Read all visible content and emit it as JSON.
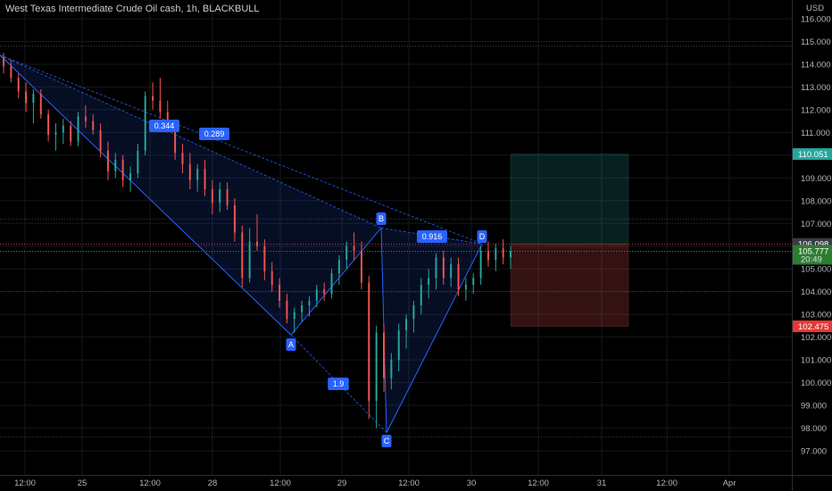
{
  "header": {
    "title": "West Texas Intermediate Crude Oil cash, 1h, BLACKBULL"
  },
  "chart_data": {
    "type": "candlestick",
    "currency": "USD",
    "ylim": [
      96.3,
      116.4
    ],
    "y_ticks": [
      97,
      98,
      99,
      100,
      101,
      102,
      103,
      104,
      105,
      106,
      107,
      108,
      109,
      110,
      111,
      112,
      113,
      114,
      115,
      116
    ],
    "y_tick_labels": [
      "97.000",
      "98.000",
      "99.000",
      "100.000",
      "101.000",
      "102.000",
      "103.000",
      "104.000",
      "105.000",
      "106.000",
      "107.000",
      "108.000",
      "109.000",
      "110.000",
      "111.000",
      "112.000",
      "113.000",
      "114.000",
      "115.000",
      "116.000"
    ],
    "x_ticks": [
      "12:00",
      "25",
      "12:00",
      "28",
      "12:00",
      "29",
      "12:00",
      "30",
      "12:00",
      "31",
      "12:00",
      "Apr"
    ],
    "grid": true,
    "price_labels": [
      {
        "value": 110.051,
        "text": "110.051",
        "color": "#26a69a"
      },
      {
        "value": 106.098,
        "text": "106.098",
        "color": "#3a3d48"
      },
      {
        "value": 105.777,
        "text": "105.777",
        "sub": "20:49",
        "color": "#2e7d32"
      },
      {
        "value": 102.475,
        "text": "102.475",
        "color": "#e53935"
      }
    ],
    "long_position": {
      "entry": 106.098,
      "target": 110.051,
      "stop": 102.475
    },
    "pattern_points": [
      {
        "label": "B",
        "price": 106.8
      },
      {
        "label": "A",
        "price": 102.1
      },
      {
        "label": "C",
        "price": 97.8
      },
      {
        "label": "D",
        "price": 106.1
      }
    ],
    "pattern_ratios": [
      "0.344",
      "0.289",
      "0.916",
      "1.9"
    ],
    "series": [
      {
        "values": [
          [
            114.3,
            114.5,
            113.6,
            113.9
          ],
          [
            113.9,
            114.2,
            113.2,
            113.4
          ],
          [
            113.4,
            113.6,
            112.5,
            112.8
          ],
          [
            112.8,
            113.2,
            111.9,
            112.3
          ],
          [
            112.3,
            112.9,
            111.4,
            112.7
          ],
          [
            112.7,
            112.9,
            111.6,
            111.8
          ],
          [
            111.8,
            112.0,
            110.6,
            110.9
          ],
          [
            110.9,
            111.4,
            110.2,
            111.0
          ],
          [
            111.0,
            111.6,
            110.5,
            111.3
          ],
          [
            111.3,
            111.5,
            110.4,
            110.6
          ],
          [
            110.6,
            111.9,
            110.4,
            111.7
          ],
          [
            111.7,
            112.2,
            111.2,
            111.5
          ],
          [
            111.5,
            111.8,
            110.9,
            111.1
          ],
          [
            111.1,
            111.4,
            109.9,
            110.2
          ],
          [
            110.2,
            110.6,
            108.9,
            109.3
          ],
          [
            109.3,
            110.1,
            109.0,
            109.8
          ],
          [
            109.8,
            110.0,
            108.6,
            108.9
          ],
          [
            108.9,
            109.5,
            108.4,
            109.2
          ],
          [
            109.2,
            110.5,
            109.0,
            110.2
          ],
          [
            110.2,
            112.8,
            110.0,
            112.6
          ],
          [
            112.6,
            113.2,
            112.0,
            112.4
          ],
          [
            112.4,
            113.4,
            111.6,
            111.9
          ],
          [
            111.9,
            112.4,
            111.0,
            111.2
          ],
          [
            111.2,
            111.5,
            109.8,
            110.1
          ],
          [
            110.1,
            110.5,
            109.2,
            109.6
          ],
          [
            109.6,
            110.1,
            108.5,
            108.9
          ],
          [
            108.9,
            109.6,
            108.4,
            109.4
          ],
          [
            109.4,
            109.8,
            108.2,
            108.5
          ],
          [
            108.5,
            108.9,
            107.4,
            107.9
          ],
          [
            107.9,
            108.8,
            107.5,
            108.5
          ],
          [
            108.5,
            108.8,
            107.6,
            107.8
          ],
          [
            107.8,
            108.1,
            106.2,
            106.6
          ],
          [
            106.6,
            106.9,
            104.2,
            104.6
          ],
          [
            104.6,
            106.8,
            104.4,
            106.2
          ],
          [
            106.2,
            107.4,
            105.8,
            106.0
          ],
          [
            106.0,
            106.3,
            104.5,
            104.9
          ],
          [
            104.9,
            105.3,
            104.0,
            104.3
          ],
          [
            104.3,
            104.6,
            103.3,
            103.6
          ],
          [
            103.6,
            103.9,
            102.6,
            102.8
          ],
          [
            102.8,
            103.3,
            102.2,
            103.1
          ],
          [
            103.1,
            103.6,
            102.7,
            103.4
          ],
          [
            103.4,
            103.8,
            102.9,
            103.6
          ],
          [
            103.6,
            104.3,
            103.3,
            104.1
          ],
          [
            104.1,
            104.4,
            103.6,
            103.9
          ],
          [
            103.9,
            105.0,
            103.7,
            104.8
          ],
          [
            104.8,
            105.6,
            104.3,
            105.4
          ],
          [
            105.4,
            106.2,
            105.0,
            106.0
          ],
          [
            106.0,
            106.6,
            105.4,
            105.8
          ],
          [
            105.8,
            106.2,
            104.1,
            104.4
          ],
          [
            104.4,
            104.7,
            98.4,
            99.2
          ],
          [
            99.2,
            102.5,
            98.0,
            102.2
          ],
          [
            102.2,
            102.6,
            99.6,
            100.2
          ],
          [
            100.2,
            101.3,
            99.7,
            101.0
          ],
          [
            101.0,
            102.6,
            100.5,
            102.3
          ],
          [
            102.3,
            103.0,
            101.5,
            102.8
          ],
          [
            102.8,
            103.6,
            102.2,
            103.4
          ],
          [
            103.4,
            104.6,
            103.0,
            104.3
          ],
          [
            104.3,
            105.0,
            103.7,
            104.6
          ],
          [
            104.6,
            105.7,
            104.1,
            105.5
          ],
          [
            105.5,
            105.8,
            104.3,
            104.6
          ],
          [
            104.6,
            105.5,
            104.2,
            105.2
          ],
          [
            105.2,
            105.5,
            103.8,
            104.1
          ],
          [
            104.1,
            104.6,
            103.6,
            104.3
          ],
          [
            104.3,
            104.8,
            103.9,
            104.6
          ],
          [
            104.6,
            106.0,
            104.3,
            105.8
          ],
          [
            105.8,
            106.2,
            105.1,
            105.4
          ],
          [
            105.4,
            106.1,
            104.9,
            105.9
          ],
          [
            105.9,
            106.3,
            105.2,
            105.5
          ],
          [
            105.5,
            106.0,
            105.0,
            105.777
          ]
        ]
      }
    ]
  }
}
